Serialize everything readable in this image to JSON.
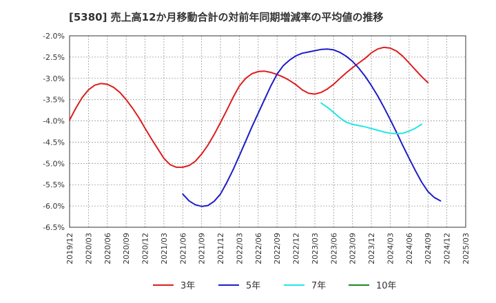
{
  "chart_data": {
    "type": "line",
    "title": "[5380]  売上高12か月移動合計の対前年同期増減率の平均値の推移",
    "xlabel": "",
    "ylabel": "",
    "x": [
      "2019/12",
      "2020/03",
      "2020/06",
      "2020/09",
      "2020/12",
      "2021/03",
      "2021/06",
      "2021/09",
      "2021/12",
      "2022/03",
      "2022/06",
      "2022/09",
      "2022/12",
      "2023/03",
      "2023/06",
      "2023/09",
      "2023/12",
      "2024/03",
      "2024/06",
      "2024/09",
      "2024/12",
      "2025/03"
    ],
    "y_ticks": [
      "-2.0%",
      "-2.5%",
      "-3.0%",
      "-3.5%",
      "-4.0%",
      "-4.5%",
      "-5.0%",
      "-5.5%",
      "-6.0%",
      "-6.5%"
    ],
    "ylim": [
      -6.5,
      -2.0
    ],
    "grid": true,
    "legend_position": "bottom",
    "series": [
      {
        "name": "3年",
        "color": "#dd1c1c",
        "points": [
          [
            0,
            -3.98
          ],
          [
            1,
            -3.7
          ],
          [
            2,
            -3.45
          ],
          [
            3,
            -3.27
          ],
          [
            4,
            -3.16
          ],
          [
            5,
            -3.12
          ],
          [
            6,
            -3.14
          ],
          [
            7,
            -3.21
          ],
          [
            8,
            -3.33
          ],
          [
            9,
            -3.5
          ],
          [
            10,
            -3.7
          ],
          [
            11,
            -3.92
          ],
          [
            12,
            -4.17
          ],
          [
            13,
            -4.42
          ],
          [
            14,
            -4.65
          ],
          [
            15,
            -4.88
          ],
          [
            16,
            -5.03
          ],
          [
            17,
            -5.09
          ],
          [
            18,
            -5.09
          ],
          [
            19,
            -5.05
          ],
          [
            20,
            -4.95
          ],
          [
            21,
            -4.78
          ],
          [
            22,
            -4.57
          ],
          [
            23,
            -4.32
          ],
          [
            24,
            -4.04
          ],
          [
            25,
            -3.75
          ],
          [
            26,
            -3.45
          ],
          [
            27,
            -3.18
          ],
          [
            28,
            -3.0
          ],
          [
            29,
            -2.89
          ],
          [
            30,
            -2.84
          ],
          [
            31,
            -2.83
          ],
          [
            32,
            -2.86
          ],
          [
            33,
            -2.91
          ],
          [
            34,
            -2.97
          ],
          [
            35,
            -3.05
          ],
          [
            36,
            -3.15
          ],
          [
            37,
            -3.27
          ],
          [
            38,
            -3.35
          ],
          [
            39,
            -3.37
          ],
          [
            40,
            -3.33
          ],
          [
            41,
            -3.25
          ],
          [
            42,
            -3.14
          ],
          [
            43,
            -3.0
          ],
          [
            44,
            -2.87
          ],
          [
            45,
            -2.75
          ],
          [
            46,
            -2.64
          ],
          [
            47,
            -2.53
          ],
          [
            48,
            -2.4
          ],
          [
            49,
            -2.31
          ],
          [
            50,
            -2.27
          ],
          [
            51,
            -2.29
          ],
          [
            52,
            -2.36
          ],
          [
            53,
            -2.48
          ],
          [
            54,
            -2.64
          ],
          [
            55,
            -2.8
          ],
          [
            56,
            -2.96
          ],
          [
            57,
            -3.1
          ]
        ]
      },
      {
        "name": "5年",
        "color": "#1c1cc8",
        "points": [
          [
            18,
            -5.72
          ],
          [
            19,
            -5.88
          ],
          [
            20,
            -5.97
          ],
          [
            21,
            -6.01
          ],
          [
            22,
            -5.99
          ],
          [
            23,
            -5.89
          ],
          [
            24,
            -5.72
          ],
          [
            25,
            -5.45
          ],
          [
            26,
            -5.15
          ],
          [
            27,
            -4.82
          ],
          [
            28,
            -4.48
          ],
          [
            29,
            -4.14
          ],
          [
            30,
            -3.82
          ],
          [
            31,
            -3.5
          ],
          [
            32,
            -3.18
          ],
          [
            33,
            -2.9
          ],
          [
            34,
            -2.7
          ],
          [
            35,
            -2.57
          ],
          [
            36,
            -2.47
          ],
          [
            37,
            -2.41
          ],
          [
            38,
            -2.38
          ],
          [
            39,
            -2.35
          ],
          [
            40,
            -2.32
          ],
          [
            41,
            -2.31
          ],
          [
            42,
            -2.33
          ],
          [
            43,
            -2.39
          ],
          [
            44,
            -2.48
          ],
          [
            45,
            -2.6
          ],
          [
            46,
            -2.76
          ],
          [
            47,
            -2.95
          ],
          [
            48,
            -3.17
          ],
          [
            49,
            -3.41
          ],
          [
            50,
            -3.68
          ],
          [
            51,
            -3.97
          ],
          [
            52,
            -4.27
          ],
          [
            53,
            -4.58
          ],
          [
            54,
            -4.88
          ],
          [
            55,
            -5.17
          ],
          [
            56,
            -5.44
          ],
          [
            57,
            -5.66
          ],
          [
            58,
            -5.8
          ],
          [
            59,
            -5.88
          ]
        ]
      },
      {
        "name": "7年",
        "color": "#22e6e6",
        "points": [
          [
            40,
            -3.58
          ],
          [
            41,
            -3.68
          ],
          [
            42,
            -3.8
          ],
          [
            43,
            -3.93
          ],
          [
            44,
            -4.03
          ],
          [
            45,
            -4.08
          ],
          [
            46,
            -4.11
          ],
          [
            47,
            -4.14
          ],
          [
            48,
            -4.18
          ],
          [
            49,
            -4.22
          ],
          [
            50,
            -4.26
          ],
          [
            51,
            -4.29
          ],
          [
            52,
            -4.3
          ],
          [
            53,
            -4.29
          ],
          [
            54,
            -4.24
          ],
          [
            55,
            -4.17
          ],
          [
            56,
            -4.08
          ]
        ]
      },
      {
        "name": "10年",
        "color": "#1a8a1a",
        "points": []
      }
    ]
  }
}
